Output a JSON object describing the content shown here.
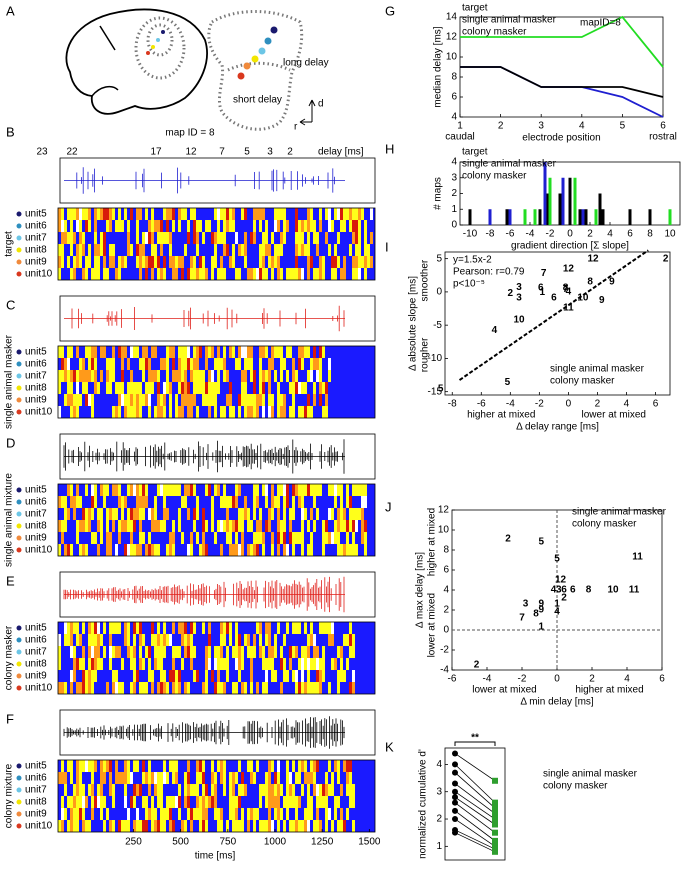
{
  "panels": {
    "letters": [
      "A",
      "B",
      "C",
      "D",
      "E",
      "F",
      "G",
      "H",
      "I",
      "J",
      "K"
    ]
  },
  "panel_a": {
    "long_label": "long delay",
    "short_label": "short delay",
    "d_label": "d",
    "r_label": "r"
  },
  "rasters": {
    "map_title": "map ID = 8",
    "delays": [
      23,
      22,
      17,
      12,
      7,
      5,
      3,
      2
    ],
    "delay_unit": "delay [ms]",
    "units": [
      "unit5",
      "unit6",
      "unit7",
      "unit8",
      "unit9",
      "unit10"
    ],
    "unit_colors": [
      "#1a1a6e",
      "#2e8fbf",
      "#6cc6e6",
      "#f2e600",
      "#f08a3c",
      "#d9381e"
    ],
    "stimuli": [
      "target",
      "single animal masker",
      "single animal mixture",
      "colony masker",
      "colony mixture"
    ],
    "stimulus_colors": [
      "#1f1fd0",
      "#e0201a",
      "#000000",
      "#e0201a",
      "#000000"
    ],
    "time_axis": {
      "xlim": [
        -150,
        1530
      ],
      "xticks": [
        250,
        500,
        750,
        1000,
        1250,
        1500
      ],
      "xlabel": "time [ms]"
    }
  },
  "chart_data": [
    {
      "type": "line",
      "title": "mapID=8",
      "x": [
        1,
        2,
        3,
        4,
        5,
        6
      ],
      "xlim": [
        1,
        6
      ],
      "xticks": [
        1,
        2,
        3,
        4,
        5,
        6
      ],
      "ylim": [
        4,
        14
      ],
      "yticks": [
        4,
        6,
        8,
        10,
        12,
        14
      ],
      "ylabel": "median delay [ms]",
      "xlabel": "electrode position",
      "x_end_labels": [
        "caudal",
        "rostral"
      ],
      "legend": "upper left",
      "series": [
        {
          "name": "target",
          "color": "#1f1fd0",
          "values": [
            9,
            9,
            7,
            7,
            6,
            4
          ]
        },
        {
          "name": "single animal masker",
          "color": "#000000",
          "values": [
            9,
            9,
            7,
            7,
            7,
            6
          ]
        },
        {
          "name": "colony masker",
          "color": "#22dd22",
          "values": [
            12,
            12,
            12,
            12,
            14,
            9
          ]
        }
      ]
    },
    {
      "type": "bar",
      "xlim": [
        -11,
        11
      ],
      "xticks": [
        -10,
        -8,
        -6,
        -4,
        -2,
        0,
        2,
        4,
        6,
        8,
        10
      ],
      "ylim": [
        0,
        4
      ],
      "yticks": [
        0,
        1,
        2,
        3,
        4
      ],
      "ylabel": "# maps",
      "xlabel": "gradient direction [Σ slope]",
      "legend": "upper left",
      "series": [
        {
          "name": "target",
          "color": "#1f1fd0",
          "x": [
            -8,
            -6,
            -2.5,
            -0.7,
            1.3
          ],
          "values": [
            1,
            1,
            4,
            3,
            1
          ]
        },
        {
          "name": "single animal masker",
          "color": "#000000",
          "x": [
            -10,
            -6.3,
            -3,
            -2.2,
            -1,
            0,
            1,
            1.6,
            3,
            3.3,
            6,
            8
          ],
          "values": [
            1,
            1,
            1,
            2,
            2,
            3,
            1,
            1,
            2,
            1,
            1,
            1
          ]
        },
        {
          "name": "colony masker",
          "color": "#22dd22",
          "x": [
            -4.5,
            -3.5,
            -2,
            0.5,
            2.6,
            10
          ],
          "values": [
            1,
            1,
            3,
            3,
            1,
            1
          ]
        }
      ]
    },
    {
      "type": "scatter",
      "xlim": [
        -8.5,
        7
      ],
      "xticks": [
        -8,
        -6,
        -4,
        -2,
        0,
        2,
        4,
        6
      ],
      "ylim": [
        -15.5,
        6
      ],
      "yticks": [
        -15,
        -10,
        -5,
        0,
        5
      ],
      "ylabel": "Δ absolute slope [ms]",
      "xlabel": "Δ delay range [ms]",
      "y_side_labels": [
        "smoother",
        "rougher"
      ],
      "x_side_labels": [
        "higher at mixed",
        "lower at mixed"
      ],
      "annotations": [
        "y=1.5x-2",
        "Pearson: r=0.79",
        "p<10⁻⁵"
      ],
      "legend": "lower right",
      "fit": {
        "x": [
          -7.5,
          5.5
        ],
        "values": [
          -13.25,
          6.25
        ]
      },
      "series": [
        {
          "name": "single animal masker",
          "color": "#000000",
          "point_labels": [
            12,
            8,
            9,
            7,
            4,
            2,
            3,
            1,
            6,
            10,
            5
          ],
          "x": [
            0,
            1.5,
            3,
            -0.2,
            0,
            -4,
            -3.4,
            -1.8,
            -1,
            1,
            -4.2
          ],
          "values": [
            3.5,
            1.5,
            1.5,
            0.4,
            0,
            -0.2,
            0.7,
            -0.1,
            -0.9,
            -0.9,
            -13.6
          ]
        },
        {
          "name": "colony masker",
          "color": "#2e9e2e",
          "point_labels": [
            12,
            2,
            7,
            6,
            8,
            3,
            9,
            11,
            10,
            4,
            5
          ],
          "x": [
            1.7,
            6.7,
            -1.7,
            -1.9,
            -0.2,
            -3.4,
            2.3,
            0,
            -3.4,
            -5.1,
            -8.8
          ],
          "values": [
            5,
            5,
            2.8,
            0.6,
            0.6,
            -0.9,
            -1.3,
            -2.4,
            -4.2,
            -5.8,
            -14.6
          ]
        }
      ]
    },
    {
      "type": "scatter",
      "xlim": [
        -6,
        6
      ],
      "xticks": [
        -6,
        -4,
        -2,
        0,
        2,
        4,
        6
      ],
      "ylim": [
        -4,
        12
      ],
      "yticks": [
        -4,
        -2,
        0,
        2,
        4,
        6,
        8,
        10,
        12
      ],
      "ylabel": "Δ max delay [ms]",
      "xlabel": "Δ min delay [ms]",
      "y_side_labels": [
        "higher at mixed",
        "lower at mixed"
      ],
      "x_side_labels": [
        "lower at mixed",
        "higher at mixed"
      ],
      "zero_lines": true,
      "legend": "upper right",
      "series": [
        {
          "name": "single animal masker",
          "color": "#000000",
          "point_labels": [
            2,
            5,
            12,
            11,
            6,
            8,
            10,
            3,
            9,
            7,
            4,
            1
          ],
          "x": [
            -2.8,
            0,
            0.2,
            4.6,
            0.9,
            1.8,
            3.2,
            -1.8,
            -0.9,
            -2,
            0,
            0
          ],
          "values": [
            9.1,
            7.1,
            5,
            7.3,
            4,
            4,
            4,
            2.6,
            2.6,
            1.2,
            1.8,
            2.6
          ]
        },
        {
          "name": "colony masker",
          "color": "#2e9e2e",
          "point_labels": [
            5,
            4,
            3,
            6,
            2,
            11,
            9,
            8,
            1,
            2
          ],
          "x": [
            -0.9,
            -0.2,
            0.1,
            0.4,
            0.4,
            4.4,
            -0.9,
            -1.2,
            -0.9,
            -4.6
          ],
          "values": [
            8.8,
            4,
            4,
            4,
            3.2,
            4,
            2,
            1.6,
            0.3,
            -3.5
          ]
        }
      ]
    },
    {
      "type": "paired",
      "ylim": [
        0.5,
        4.6
      ],
      "yticks": [
        1,
        2,
        3,
        4
      ],
      "ylabel": "normalized cumulative d'",
      "annotation": "**",
      "legend": "right",
      "series": [
        {
          "name": "single animal masker",
          "color": "#000000",
          "values": [
            4.4,
            4.0,
            3.7,
            3.3,
            3.0,
            2.8,
            2.6,
            2.3,
            2.0,
            1.6,
            1.5
          ]
        },
        {
          "name": "colony masker",
          "color": "#2e9e2e",
          "values": [
            3.4,
            2.6,
            2.4,
            2.2,
            2.0,
            1.8,
            1.5,
            1.2,
            1.0,
            0.9,
            0.8
          ]
        }
      ]
    }
  ]
}
